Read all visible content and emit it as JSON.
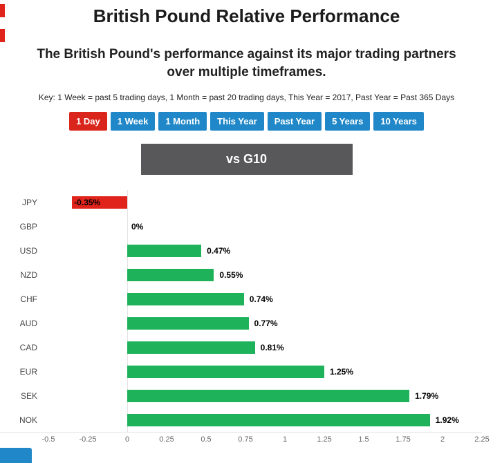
{
  "page": {
    "title": "British Pound Relative Performance",
    "subtitle": "The British Pound's performance against its major trading partners over multiple timeframes.",
    "key_text": "Key: 1 Week = past 5 trading days, 1 Month = past 20 trading days, This Year = 2017, Past Year = Past 365 Days",
    "banner": "vs G10"
  },
  "timeframe_buttons": [
    {
      "label": "1 Day",
      "active": true
    },
    {
      "label": "1 Week",
      "active": false
    },
    {
      "label": "1 Month",
      "active": false
    },
    {
      "label": "This Year",
      "active": false
    },
    {
      "label": "Past Year",
      "active": false
    },
    {
      "label": "5 Years",
      "active": false
    },
    {
      "label": "10 Years",
      "active": false
    }
  ],
  "colors": {
    "active_button": "#da251d",
    "inactive_button": "#2088c8",
    "banner_background": "#58585b",
    "positive_bar": "#1eb35b",
    "negative_bar": "#e0241c"
  },
  "chart_data": {
    "type": "bar",
    "orientation": "horizontal",
    "title": "vs G10",
    "categories": [
      "JPY",
      "GBP",
      "USD",
      "NZD",
      "CHF",
      "AUD",
      "CAD",
      "EUR",
      "SEK",
      "NOK"
    ],
    "values": [
      -0.35,
      0,
      0.47,
      0.55,
      0.74,
      0.77,
      0.81,
      1.25,
      1.79,
      1.92
    ],
    "value_labels": [
      "-0.35%",
      "0%",
      "0.47%",
      "0.55%",
      "0.74%",
      "0.77%",
      "0.81%",
      "1.25%",
      "1.79%",
      "1.92%"
    ],
    "xlim": [
      -0.5,
      2.25
    ],
    "x_ticks": [
      -0.5,
      -0.25,
      0,
      0.25,
      0.5,
      0.75,
      1,
      1.25,
      1.5,
      1.75,
      2,
      2.25
    ],
    "xlabel": "",
    "ylabel": "",
    "grid": false,
    "legend": false,
    "positive_color": "#1eb35b",
    "negative_color": "#e0241c"
  }
}
